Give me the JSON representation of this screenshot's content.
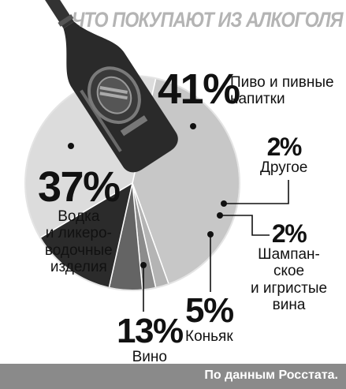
{
  "chart_data": {
    "type": "pie",
    "title": "ЧТО ПОКУПАЮТ ИЗ АЛКОГОЛЯ",
    "slices": [
      {
        "value": 41,
        "label": "41%",
        "name": "Пиво и пивные напитки",
        "color": "#c7c7c7"
      },
      {
        "value": 2,
        "label": "2%",
        "name": "Другое",
        "color": "#b4b4b4"
      },
      {
        "value": 2,
        "label": "2%",
        "name": "Шампанское и игристые вина",
        "color": "#8c8c8c"
      },
      {
        "value": 5,
        "label": "5%",
        "name": "Коньяк",
        "color": "#646464"
      },
      {
        "value": 13,
        "label": "13%",
        "name": "Вино",
        "color": "#2b2b2b"
      },
      {
        "value": 37,
        "label": "37%",
        "name": "Водка и ликеро-водочные изделия",
        "color": "#dcdcdc"
      }
    ],
    "source_note": "По данным Росстата."
  },
  "labels": {
    "beer_pct": "41%",
    "beer_l1": "Пиво и пивные",
    "beer_l2": "напитки",
    "other_pct": "2%",
    "other_l1": "Другое",
    "champ_pct": "2%",
    "champ_l1": "Шампан-",
    "champ_l2": "ское",
    "champ_l3": "и игристые",
    "champ_l4": "вина",
    "cognac_pct": "5%",
    "cognac_l1": "Коньяк",
    "wine_pct": "13%",
    "wine_l1": "Вино",
    "vodka_pct": "37%",
    "vodka_l1": "Водка",
    "vodka_l2": "и ликеро-",
    "vodka_l3": "водочные",
    "vodka_l4": "изделия"
  }
}
